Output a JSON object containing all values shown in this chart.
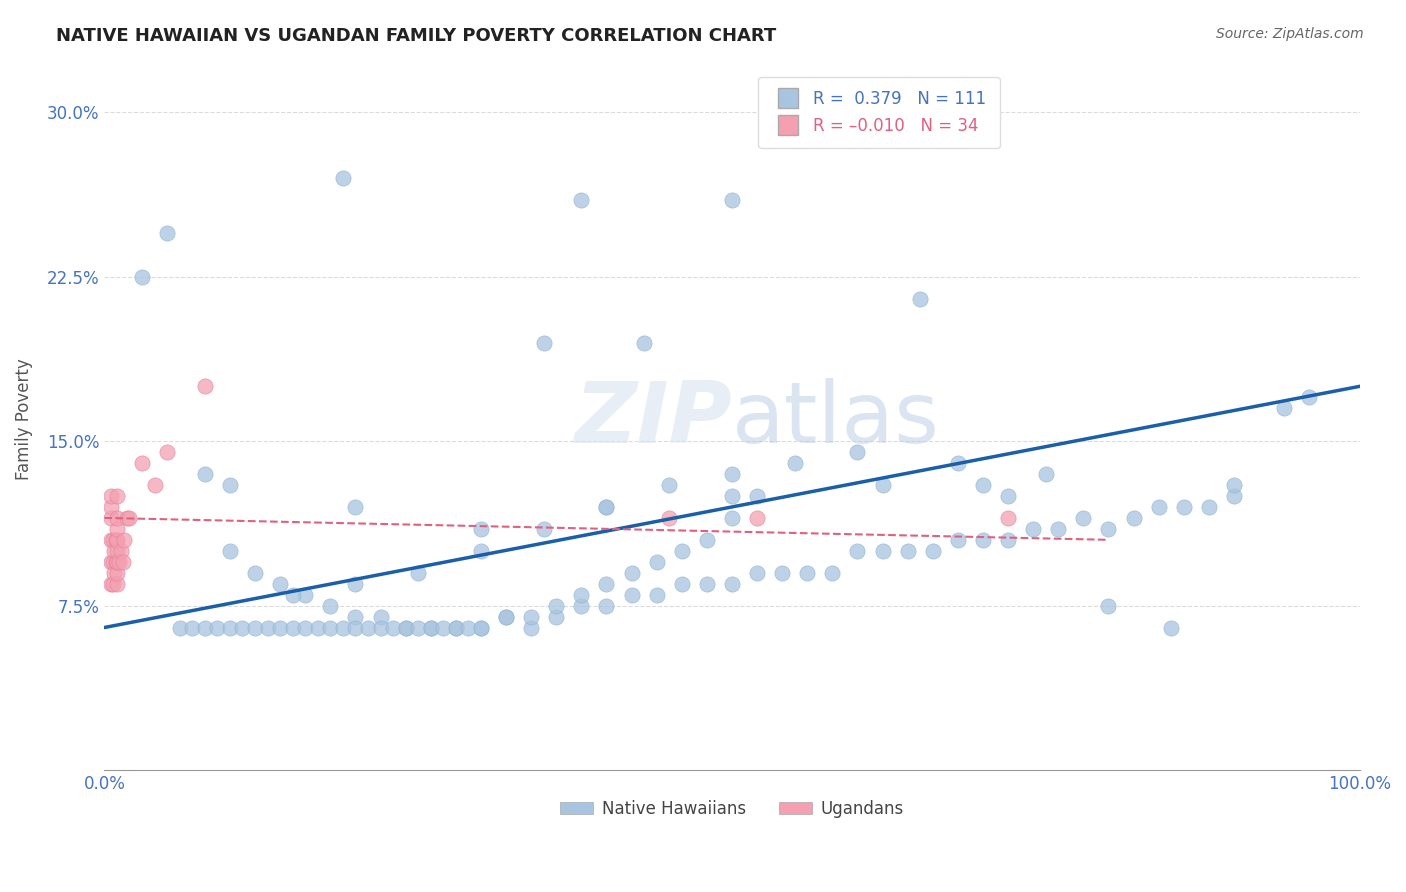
{
  "title": "NATIVE HAWAIIAN VS UGANDAN FAMILY POVERTY CORRELATION CHART",
  "source": "Source: ZipAtlas.com",
  "xlabel": "",
  "ylabel": "Family Poverty",
  "xlim": [
    0.0,
    1.0
  ],
  "ylim": [
    0.0,
    0.32
  ],
  "x_ticks": [
    0.0,
    1.0
  ],
  "x_tick_labels": [
    "0.0%",
    "100.0%"
  ],
  "y_ticks": [
    0.075,
    0.15,
    0.225,
    0.3
  ],
  "y_tick_labels": [
    "7.5%",
    "15.0%",
    "22.5%",
    "30.0%"
  ],
  "legend_r1": "R =  0.379",
  "legend_n1": "N = 111",
  "legend_r2": "R = -0.010",
  "legend_n2": "N = 34",
  "blue_color": "#a8c4e0",
  "pink_color": "#f4a0b0",
  "blue_line_color": "#1a5fa8",
  "pink_line_color": "#e06080",
  "watermark_color": "#d0dce8",
  "watermark_text_color": "#c8d8e8",
  "grid_color": "#cccccc",
  "tick_label_color": "#4472c4",
  "bottom_legend_items": [
    "Native Hawaiians",
    "Ugandans"
  ],
  "blue_trend_x": [
    0.0,
    1.0
  ],
  "blue_trend_y": [
    0.065,
    0.175
  ],
  "pink_trend_x": [
    0.0,
    0.8
  ],
  "pink_trend_y": [
    0.115,
    0.105
  ],
  "blue_scatter_x": [
    0.19,
    0.38,
    0.05,
    0.5,
    0.35,
    0.43,
    0.65,
    0.03,
    0.08,
    0.1,
    0.12,
    0.14,
    0.16,
    0.18,
    0.2,
    0.22,
    0.24,
    0.26,
    0.28,
    0.3,
    0.32,
    0.34,
    0.36,
    0.38,
    0.4,
    0.42,
    0.44,
    0.46,
    0.48,
    0.5,
    0.52,
    0.54,
    0.56,
    0.58,
    0.6,
    0.62,
    0.64,
    0.66,
    0.68,
    0.7,
    0.72,
    0.74,
    0.76,
    0.78,
    0.8,
    0.82,
    0.84,
    0.86,
    0.88,
    0.9,
    0.06,
    0.07,
    0.08,
    0.09,
    0.1,
    0.11,
    0.12,
    0.13,
    0.14,
    0.15,
    0.16,
    0.17,
    0.18,
    0.19,
    0.2,
    0.21,
    0.22,
    0.23,
    0.24,
    0.25,
    0.26,
    0.27,
    0.28,
    0.29,
    0.3,
    0.32,
    0.34,
    0.36,
    0.38,
    0.4,
    0.42,
    0.44,
    0.46,
    0.48,
    0.5,
    0.52,
    0.94,
    0.96,
    0.62,
    0.7,
    0.75,
    0.8,
    0.85,
    0.9,
    0.15,
    0.2,
    0.25,
    0.3,
    0.35,
    0.4,
    0.45,
    0.5,
    0.55,
    0.6,
    0.68,
    0.72,
    0.1,
    0.2,
    0.3,
    0.4,
    0.5
  ],
  "blue_scatter_y": [
    0.27,
    0.26,
    0.245,
    0.26,
    0.195,
    0.195,
    0.215,
    0.225,
    0.135,
    0.1,
    0.09,
    0.085,
    0.08,
    0.075,
    0.07,
    0.07,
    0.065,
    0.065,
    0.065,
    0.065,
    0.07,
    0.065,
    0.07,
    0.075,
    0.075,
    0.08,
    0.08,
    0.085,
    0.085,
    0.085,
    0.09,
    0.09,
    0.09,
    0.09,
    0.1,
    0.1,
    0.1,
    0.1,
    0.105,
    0.105,
    0.105,
    0.11,
    0.11,
    0.115,
    0.11,
    0.115,
    0.12,
    0.12,
    0.12,
    0.125,
    0.065,
    0.065,
    0.065,
    0.065,
    0.065,
    0.065,
    0.065,
    0.065,
    0.065,
    0.065,
    0.065,
    0.065,
    0.065,
    0.065,
    0.065,
    0.065,
    0.065,
    0.065,
    0.065,
    0.065,
    0.065,
    0.065,
    0.065,
    0.065,
    0.065,
    0.07,
    0.07,
    0.075,
    0.08,
    0.085,
    0.09,
    0.095,
    0.1,
    0.105,
    0.115,
    0.125,
    0.165,
    0.17,
    0.13,
    0.13,
    0.135,
    0.075,
    0.065,
    0.13,
    0.08,
    0.085,
    0.09,
    0.1,
    0.11,
    0.12,
    0.13,
    0.135,
    0.14,
    0.145,
    0.14,
    0.125,
    0.13,
    0.12,
    0.11,
    0.12,
    0.125
  ],
  "pink_scatter_x": [
    0.005,
    0.005,
    0.005,
    0.005,
    0.005,
    0.005,
    0.007,
    0.007,
    0.007,
    0.008,
    0.008,
    0.009,
    0.009,
    0.01,
    0.01,
    0.01,
    0.01,
    0.01,
    0.01,
    0.01,
    0.01,
    0.012,
    0.013,
    0.015,
    0.016,
    0.018,
    0.02,
    0.03,
    0.04,
    0.05,
    0.08,
    0.45,
    0.52,
    0.72
  ],
  "pink_scatter_y": [
    0.085,
    0.095,
    0.105,
    0.115,
    0.12,
    0.125,
    0.085,
    0.095,
    0.105,
    0.09,
    0.1,
    0.095,
    0.105,
    0.085,
    0.09,
    0.095,
    0.1,
    0.105,
    0.11,
    0.115,
    0.125,
    0.095,
    0.1,
    0.095,
    0.105,
    0.115,
    0.115,
    0.14,
    0.13,
    0.145,
    0.175,
    0.115,
    0.115,
    0.115
  ]
}
